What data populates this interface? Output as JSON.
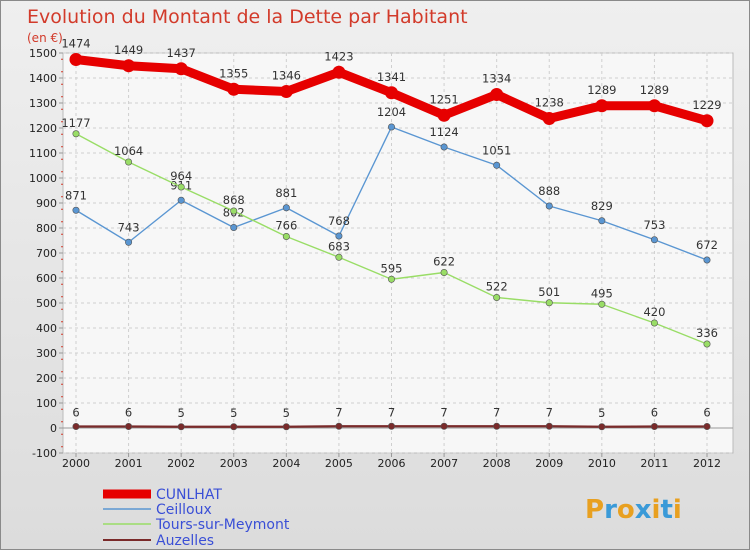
{
  "chart_data": {
    "type": "line",
    "title": "Evolution du Montant de la Dette par Habitant",
    "unit_label": "(en €)",
    "categories": [
      "2000",
      "2001",
      "2002",
      "2003",
      "2004",
      "2005",
      "2006",
      "2007",
      "2008",
      "2009",
      "2010",
      "2011",
      "2012"
    ],
    "ylim": [
      -100,
      1500
    ],
    "yticks": [
      "-100",
      "0",
      "100",
      "200",
      "300",
      "400",
      "500",
      "600",
      "700",
      "800",
      "900",
      "1000",
      "1100",
      "1200",
      "1300",
      "1400",
      "1500"
    ],
    "grid": true,
    "legend_position": "bottom-left",
    "series": [
      {
        "name": "CUNLHAT",
        "color": "#e60000",
        "values": [
          1474,
          1449,
          1437,
          1355,
          1346,
          1423,
          1341,
          1251,
          1334,
          1238,
          1289,
          1289,
          1229
        ],
        "labels": [
          "1474",
          "1449",
          "1437",
          "1355",
          "1346",
          "1423",
          "1341",
          "1251",
          "1334",
          "1238",
          "1289",
          "1289",
          "1229"
        ]
      },
      {
        "name": "Ceilloux",
        "color": "#5a96d2",
        "values": [
          871,
          743,
          911,
          802,
          881,
          768,
          1204,
          1124,
          1051,
          888,
          829,
          753,
          672
        ],
        "labels": [
          "871",
          "743",
          "911",
          "802",
          "881",
          "768",
          "1204",
          "1124",
          "1051",
          "888",
          "829",
          "753",
          "672"
        ]
      },
      {
        "name": "Tours-sur-Meymont",
        "color": "#99dd66",
        "values": [
          1177,
          1064,
          964,
          868,
          766,
          683,
          595,
          622,
          522,
          501,
          495,
          420,
          336
        ],
        "labels": [
          "1177",
          "1064",
          "964",
          "868",
          "766",
          "683",
          "595",
          "622",
          "522",
          "501",
          "495",
          "420",
          "336"
        ]
      },
      {
        "name": "Auzelles",
        "color": "#7a2a2a",
        "values": [
          6,
          6,
          5,
          5,
          5,
          7,
          7,
          7,
          7,
          7,
          5,
          6,
          6
        ],
        "labels": [
          "6",
          "6",
          "5",
          "5",
          "5",
          "7",
          "7",
          "7",
          "7",
          "7",
          "5",
          "6",
          "6"
        ]
      }
    ]
  },
  "logo": {
    "letters": [
      "P",
      "r",
      "o",
      "x",
      "i",
      "t",
      "i"
    ],
    "colors": [
      "#e8a020",
      "#3a9ad8",
      "#e8a020",
      "#3a9ad8",
      "#e8a020",
      "#3a9ad8",
      "#e8a020"
    ]
  }
}
